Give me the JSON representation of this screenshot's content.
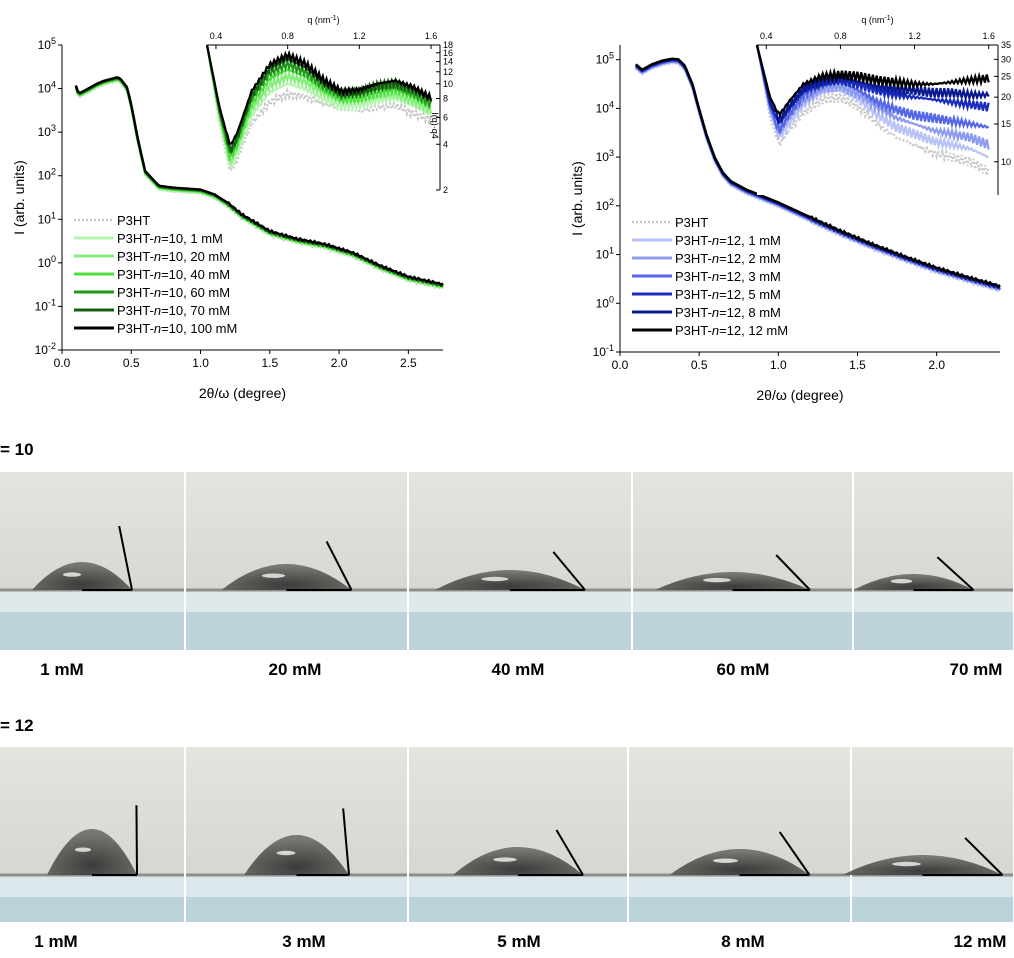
{
  "chart_data": [
    {
      "type": "line",
      "panel": "left",
      "xlabel": "2θ/ω (degree)",
      "ylabel": "I (arb. units)",
      "yscale": "log",
      "xlim": [
        0,
        2.75
      ],
      "ylim": [
        0.01,
        100000
      ],
      "xticks": [
        "0.0",
        "0.5",
        "1.0",
        "1.5",
        "2.0",
        "2.5"
      ],
      "yticks": [
        "10-2",
        "10-1",
        "100",
        "101",
        "102",
        "103",
        "104",
        "105"
      ],
      "legend": "bottom-left",
      "legend_entries": [
        {
          "label": "P3HT",
          "color": "#c8c8c8",
          "dash": true
        },
        {
          "label": "P3HT-n=10, 1 mM",
          "color": "#b6f5b0"
        },
        {
          "label": "P3HT-n=10, 20 mM",
          "color": "#86ef7c"
        },
        {
          "label": "P3HT-n=10, 40 mM",
          "color": "#4cdf3c"
        },
        {
          "label": "P3HT-n=10, 60 mM",
          "color": "#239a1d"
        },
        {
          "label": "P3HT-n=10, 70 mM",
          "color": "#155f11"
        },
        {
          "label": "P3HT-n=10, 100 mM",
          "color": "#000000"
        }
      ],
      "series_profile": {
        "x": [
          0.1,
          0.12,
          0.18,
          0.25,
          0.3,
          0.35,
          0.4,
          0.42,
          0.47,
          0.5,
          0.55,
          0.6,
          0.7,
          0.8,
          1.0,
          1.1,
          1.2,
          1.3,
          1.5,
          1.7,
          1.9,
          2.1,
          2.3,
          2.5,
          2.75
        ],
        "y": [
          11000,
          7200,
          9000,
          12000,
          14000,
          15500,
          17000,
          16000,
          10000,
          4000,
          600,
          120,
          55,
          50,
          45,
          35,
          22,
          12,
          5,
          3.3,
          2.5,
          1.6,
          0.8,
          0.45,
          0.3
        ]
      },
      "inset": {
        "top_axis_label": "q (nm-1)",
        "xticks": [
          "0.4",
          "0.8",
          "1.2",
          "1.6"
        ],
        "xlim": [
          0.35,
          1.65
        ],
        "right_ticks": [
          "2",
          "4",
          "6",
          "8",
          "10",
          "12",
          "14",
          "16",
          "18"
        ],
        "right_label": "I(q)·q4",
        "ylim": [
          2,
          18
        ],
        "curves": [
          {
            "color": "#c8c8c8",
            "dash": true,
            "x": [
              0.35,
              0.42,
              0.48,
              0.52,
              0.6,
              0.7,
              0.8,
              0.9,
              1.0,
              1.1,
              1.2,
              1.3,
              1.4,
              1.5,
              1.6
            ],
            "y": [
              18,
              5.5,
              2.6,
              3.2,
              5.5,
              7.6,
              8.6,
              8.2,
              7.4,
              6.8,
              6.6,
              7.0,
              7.2,
              6.4,
              5.8
            ]
          },
          {
            "color": "#b6f5b0",
            "x": [
              0.35,
              0.42,
              0.48,
              0.52,
              0.6,
              0.7,
              0.8,
              0.9,
              1.0,
              1.1,
              1.2,
              1.3,
              1.4,
              1.5,
              1.6
            ],
            "y": [
              18,
              5.8,
              2.8,
              3.5,
              6.2,
              8.8,
              10.0,
              9.3,
              8.0,
              7.2,
              7.3,
              7.8,
              8.1,
              7.2,
              6.3
            ]
          },
          {
            "color": "#86ef7c",
            "x": [
              0.35,
              0.42,
              0.48,
              0.52,
              0.6,
              0.7,
              0.8,
              0.9,
              1.0,
              1.1,
              1.2,
              1.3,
              1.4,
              1.5,
              1.6
            ],
            "y": [
              18,
              6.0,
              3.0,
              3.8,
              6.8,
              9.8,
              11.2,
              10.3,
              8.7,
              7.6,
              7.7,
              8.3,
              8.6,
              7.7,
              6.7
            ]
          },
          {
            "color": "#4cdf3c",
            "x": [
              0.35,
              0.42,
              0.48,
              0.52,
              0.6,
              0.7,
              0.8,
              0.9,
              1.0,
              1.1,
              1.2,
              1.3,
              1.4,
              1.5,
              1.6
            ],
            "y": [
              18,
              6.3,
              3.2,
              4.0,
              7.4,
              10.8,
              12.4,
              11.2,
              9.2,
              8.0,
              8.1,
              8.8,
              9.2,
              8.2,
              7.0
            ]
          },
          {
            "color": "#239a1d",
            "x": [
              0.35,
              0.42,
              0.48,
              0.52,
              0.6,
              0.7,
              0.8,
              0.9,
              1.0,
              1.1,
              1.2,
              1.3,
              1.4,
              1.5,
              1.6
            ],
            "y": [
              18,
              6.5,
              3.4,
              4.3,
              8.0,
              11.8,
              13.5,
              12.0,
              9.7,
              8.3,
              8.5,
              9.3,
              9.7,
              8.7,
              7.4
            ]
          },
          {
            "color": "#155f11",
            "x": [
              0.35,
              0.42,
              0.48,
              0.52,
              0.6,
              0.7,
              0.8,
              0.9,
              1.0,
              1.1,
              1.2,
              1.3,
              1.4,
              1.5,
              1.6
            ],
            "y": [
              18,
              6.7,
              3.6,
              4.5,
              8.5,
              12.6,
              14.5,
              12.8,
              10.2,
              8.6,
              8.8,
              9.7,
              10.1,
              9.1,
              7.8
            ]
          },
          {
            "color": "#000000",
            "x": [
              0.35,
              0.42,
              0.48,
              0.52,
              0.6,
              0.7,
              0.8,
              0.9,
              1.0,
              1.1,
              1.2,
              1.3,
              1.4,
              1.5,
              1.6
            ],
            "y": [
              18,
              7.0,
              3.9,
              4.8,
              9.0,
              13.4,
              15.4,
              13.5,
              10.6,
              8.9,
              9.1,
              10.0,
              10.5,
              9.5,
              8.1
            ]
          }
        ]
      }
    },
    {
      "type": "line",
      "panel": "right",
      "xlabel": "2θ/ω (degree)",
      "ylabel": "I (arb. units)",
      "yscale": "log",
      "xlim": [
        0,
        2.4
      ],
      "ylim": [
        0.1,
        200000
      ],
      "xticks": [
        "0.0",
        "0.5",
        "1.0",
        "1.5",
        "2.0"
      ],
      "yticks": [
        "10-1",
        "100",
        "101",
        "102",
        "103",
        "104",
        "105"
      ],
      "legend": "bottom-left",
      "legend_entries": [
        {
          "label": "P3HT",
          "color": "#c8c8c8",
          "dash": true
        },
        {
          "label": "P3HT-n=12, 1 mM",
          "color": "#b9c3f5"
        },
        {
          "label": "P3HT-n=12, 2 mM",
          "color": "#8c9bef"
        },
        {
          "label": "P3HT-n=12, 3 mM",
          "color": "#5566e6"
        },
        {
          "label": "P3HT-n=12, 5 mM",
          "color": "#1a2bbd"
        },
        {
          "label": "P3HT-n=12, 8 mM",
          "color": "#0b1a8c"
        },
        {
          "label": "P3HT-n=12, 12 mM",
          "color": "#000000"
        }
      ],
      "series_profile": {
        "x": [
          0.1,
          0.14,
          0.2,
          0.27,
          0.33,
          0.37,
          0.41,
          0.46,
          0.5,
          0.55,
          0.6,
          0.65,
          0.7,
          0.8,
          1.0,
          1.2,
          1.4,
          1.6,
          1.8,
          2.0,
          2.2,
          2.4
        ],
        "y": [
          75000,
          58000,
          75000,
          90000,
          98000,
          95000,
          70000,
          28000,
          9000,
          2500,
          900,
          450,
          300,
          200,
          110,
          55,
          28,
          15,
          8.5,
          5,
          3.2,
          2.1
        ]
      },
      "inset": {
        "top_axis_label": "q (nm-1)",
        "xticks": [
          "0.4",
          "0.8",
          "1.2",
          "1.6"
        ],
        "xlim": [
          0.35,
          1.65
        ],
        "right_ticks": [
          "10",
          "15",
          "20",
          "25",
          "30",
          "35"
        ],
        "ylim": [
          7,
          35
        ],
        "curves": [
          {
            "color": "#c8c8c8",
            "dash": true,
            "x": [
              0.35,
              0.42,
              0.47,
              0.52,
              0.6,
              0.7,
              0.8,
              0.9,
              1.0,
              1.1,
              1.2,
              1.3,
              1.4,
              1.5,
              1.6
            ],
            "y": [
              35,
              16,
              12,
              14,
              17,
              19.5,
              20,
              18,
              15,
              13,
              12,
              11,
              10.5,
              10,
              9
            ]
          },
          {
            "color": "#b9c3f5",
            "x": [
              0.35,
              0.42,
              0.47,
              0.52,
              0.6,
              0.7,
              0.8,
              0.9,
              1.0,
              1.1,
              1.2,
              1.3,
              1.4,
              1.5,
              1.6
            ],
            "y": [
              35,
              17,
              13,
              15,
              18.5,
              21,
              21.5,
              19.5,
              16.5,
              14.5,
              13.5,
              12.5,
              12,
              11.5,
              10.5
            ]
          },
          {
            "color": "#8c9bef",
            "x": [
              0.35,
              0.42,
              0.47,
              0.52,
              0.6,
              0.7,
              0.8,
              0.9,
              1.0,
              1.1,
              1.2,
              1.3,
              1.4,
              1.5,
              1.6
            ],
            "y": [
              35,
              17.5,
              13.5,
              16,
              19.5,
              22,
              22.5,
              20.5,
              18,
              16,
              15,
              14,
              13.5,
              13,
              12
            ]
          },
          {
            "color": "#5566e6",
            "x": [
              0.35,
              0.42,
              0.47,
              0.52,
              0.6,
              0.7,
              0.8,
              0.9,
              1.0,
              1.1,
              1.2,
              1.3,
              1.4,
              1.5,
              1.6
            ],
            "y": [
              35,
              18,
              14,
              16.5,
              20.5,
              23,
              23.5,
              21.5,
              19,
              17.5,
              16.5,
              16,
              15.5,
              15,
              14.5
            ]
          },
          {
            "color": "#1a2bbd",
            "x": [
              0.35,
              0.42,
              0.47,
              0.52,
              0.6,
              0.7,
              0.8,
              0.9,
              1.0,
              1.1,
              1.2,
              1.3,
              1.4,
              1.5,
              1.6
            ],
            "y": [
              35,
              18.5,
              15,
              17.5,
              21.5,
              23.5,
              24,
              23,
              21.5,
              20.5,
              20,
              19.5,
              19,
              18.5,
              18
            ]
          },
          {
            "color": "#0b1a8c",
            "x": [
              0.35,
              0.42,
              0.47,
              0.52,
              0.6,
              0.7,
              0.8,
              0.9,
              1.0,
              1.1,
              1.2,
              1.3,
              1.4,
              1.5,
              1.6
            ],
            "y": [
              35,
              19,
              15.5,
              18,
              22,
              24,
              24.5,
              23.5,
              22.5,
              22,
              21.5,
              21,
              21,
              20.5,
              20.5
            ]
          },
          {
            "color": "#000000",
            "x": [
              0.35,
              0.42,
              0.47,
              0.52,
              0.6,
              0.7,
              0.8,
              0.9,
              1.0,
              1.1,
              1.2,
              1.3,
              1.4,
              1.5,
              1.6
            ],
            "y": [
              35,
              20,
              16.5,
              19,
              23,
              25,
              25.5,
              25,
              24,
              23.5,
              23,
              23,
              23.5,
              24,
              24.5
            ]
          }
        ]
      }
    }
  ],
  "rows": [
    {
      "label": "= 10",
      "captions": [
        "1 mM",
        "20 mM",
        "40 mM",
        "60 mM",
        "70 mM"
      ],
      "contact_angle_deg": [
        66,
        44,
        33,
        30,
        28
      ]
    },
    {
      "label": "= 12",
      "captions": [
        "1 mM",
        "3 mM",
        "5 mM",
        "8 mM",
        "12 mM"
      ],
      "contact_angle_deg": [
        85,
        72,
        40,
        38,
        32
      ]
    }
  ]
}
